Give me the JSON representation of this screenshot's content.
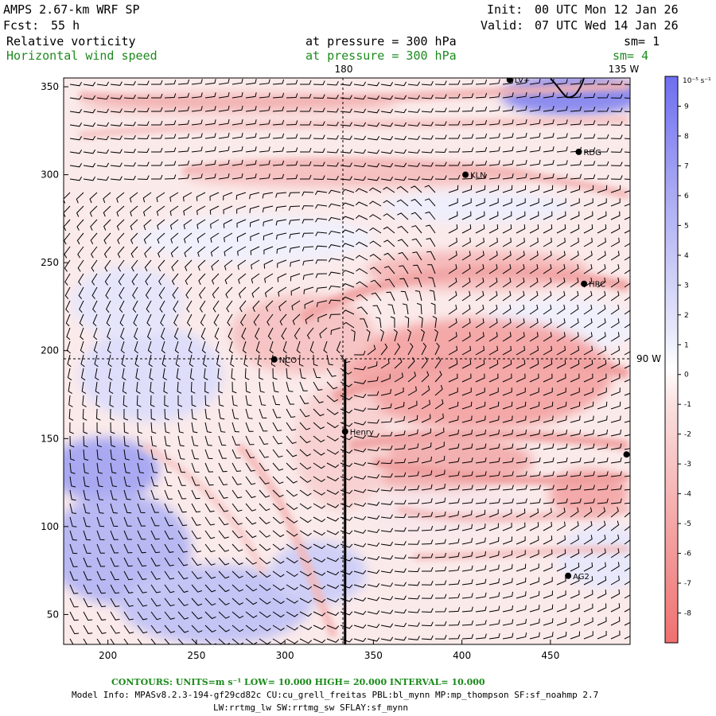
{
  "header": {
    "model": "AMPS 2.67-km WRF SP",
    "fcst_label": "Fcst:",
    "fcst_value": "55 h",
    "init_label": "Init:",
    "init_value": "00 UTC Mon 12 Jan 26",
    "valid_label": "Valid:",
    "valid_value": "07 UTC Wed 14 Jan 26",
    "field1": "Relative vorticity",
    "field1_level": "at pressure =  300 hPa",
    "field1_sm": "sm= 1",
    "field2": "Horizontal wind speed",
    "field2_level": "at pressure =  300 hPa",
    "field2_sm": "sm= 4",
    "field2_color": "#1e8a1e"
  },
  "chart_data": {
    "type": "heatmap",
    "title": "Relative vorticity at pressure = 300 hPa with wind barbs",
    "x_ticks": [
      "200",
      "250",
      "300",
      "350",
      "400",
      "450"
    ],
    "y_ticks": [
      "350",
      "300",
      "250",
      "200",
      "150",
      "100",
      "50"
    ],
    "x_range": [
      175,
      495
    ],
    "y_range": [
      33,
      355
    ],
    "meridian_labels": {
      "top_center": "180",
      "top_right": "135 W",
      "right": "90 W"
    },
    "stations": [
      {
        "name": "LV+",
        "x": 427,
        "y": 354
      },
      {
        "name": "RDG",
        "x": 466,
        "y": 313
      },
      {
        "name": "KLN",
        "x": 402,
        "y": 300
      },
      {
        "name": "HRC",
        "x": 469,
        "y": 238
      },
      {
        "name": "NCO",
        "x": 294,
        "y": 195
      },
      {
        "name": "Henry",
        "x": 334,
        "y": 154
      },
      {
        "name": "AG2",
        "x": 460,
        "y": 72
      },
      {
        "name": "",
        "x": 493,
        "y": 141
      }
    ],
    "cross_section": {
      "x": 334,
      "y_from": 33,
      "y_to": 195
    },
    "colorbar": {
      "units": "10⁻⁵ s⁻¹",
      "labels": [
        "9",
        "8",
        "7",
        "6",
        "5",
        "4",
        "3",
        "2",
        "1",
        "0",
        "-1",
        "-2",
        "-3",
        "-4",
        "-5",
        "-6",
        "-7",
        "-8"
      ],
      "max_color": "#6e6ef0",
      "zero_color": "#ffffff",
      "min_color": "#f07070"
    }
  },
  "footer": {
    "contours": "CONTOURS:  UNITS=m s⁻¹  LOW=  10.000      HIGH=  20.000      INTERVAL=   10.000",
    "model_info": "Model Info: MPASv8.2.3-194-gf29cd82c CU:cu_grell_freitas PBL:bl_mynn MP:mp_thompson SF:sf_noahmp 2.7",
    "model_info2": "LW:rrtmg_lw SW:rrtmg_sw SFLAY:sf_mynn",
    "green": "#1a8a1a"
  }
}
